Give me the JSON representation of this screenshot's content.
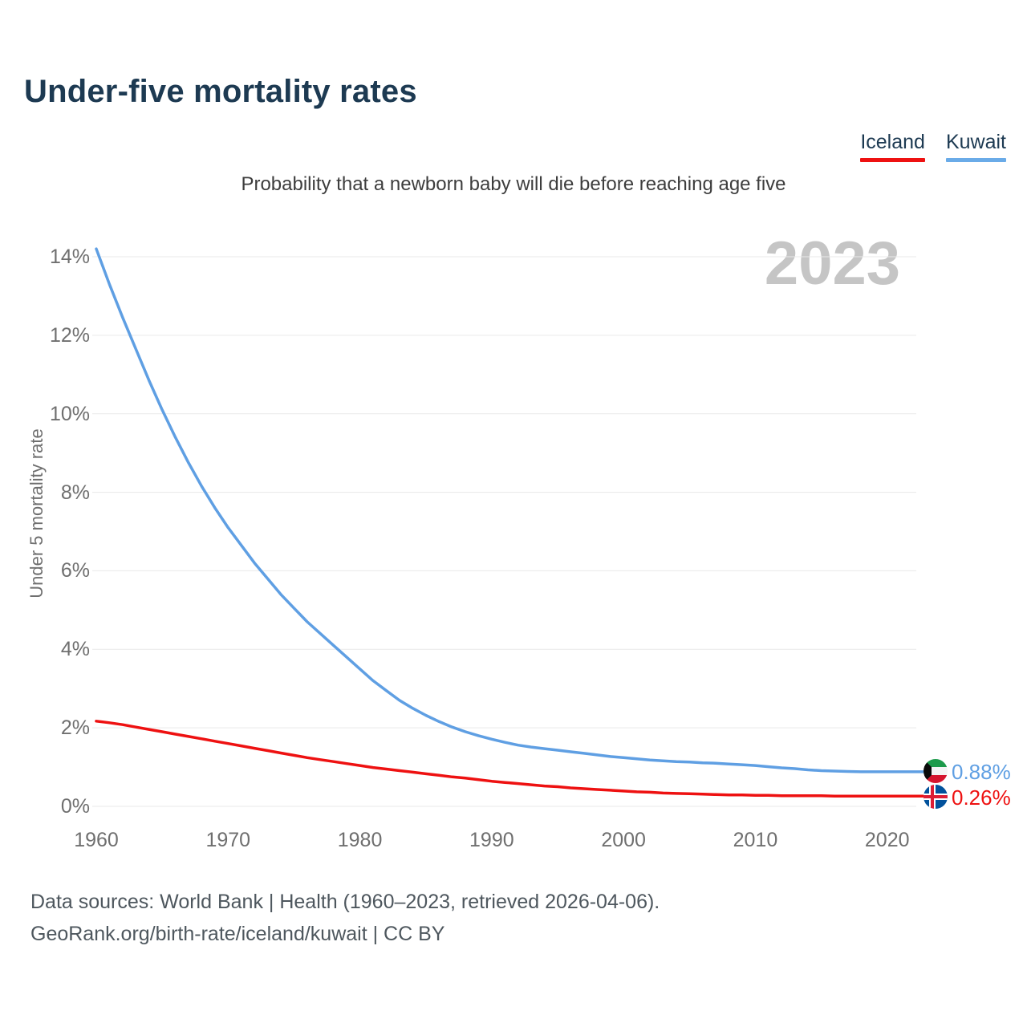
{
  "header": {
    "title": "Under-five mortality rates"
  },
  "legend": {
    "items": [
      {
        "label": "Iceland",
        "color": "#ee1111"
      },
      {
        "label": "Kuwait",
        "color": "#6aabe8"
      }
    ]
  },
  "subtitle": "Probability that a newborn baby will die before reaching age five",
  "watermark": "2023",
  "end_labels": [
    {
      "series": "Kuwait",
      "value_label": "0.88%",
      "color": "#5f9fe3",
      "flag": "kuwait-flag-icon"
    },
    {
      "series": "Iceland",
      "value_label": "0.26%",
      "color": "#ee1111",
      "flag": "iceland-flag-icon"
    }
  ],
  "footer": {
    "line1": "Data sources: World Bank | Health (1960–2023, retrieved 2026-04-06).",
    "line2": "GeoRank.org/birth-rate/iceland/kuwait | CC BY"
  },
  "chart_data": {
    "type": "line",
    "title": "Under-five mortality rates",
    "subtitle": "Probability that a newborn baby will die before reaching age five",
    "xlabel": "",
    "ylabel": "Under 5 mortality rate",
    "ylim": [
      0,
      14
    ],
    "xlim": [
      1960,
      2023
    ],
    "yticks_percent": [
      0,
      2,
      4,
      6,
      8,
      10,
      12,
      14
    ],
    "xticks": [
      1960,
      1970,
      1980,
      1990,
      2000,
      2010,
      2020
    ],
    "grid": true,
    "legend_position": "top-right",
    "grid_color": "#e9e9e9",
    "series": [
      {
        "name": "Kuwait",
        "color": "#5f9fe3",
        "end_label": "0.88%",
        "points": [
          [
            1960,
            14.2
          ],
          [
            1961,
            13.3
          ],
          [
            1962,
            12.45
          ],
          [
            1963,
            11.65
          ],
          [
            1964,
            10.85
          ],
          [
            1965,
            10.1
          ],
          [
            1966,
            9.4
          ],
          [
            1967,
            8.75
          ],
          [
            1968,
            8.15
          ],
          [
            1969,
            7.6
          ],
          [
            1970,
            7.1
          ],
          [
            1971,
            6.65
          ],
          [
            1972,
            6.2
          ],
          [
            1973,
            5.8
          ],
          [
            1974,
            5.4
          ],
          [
            1975,
            5.05
          ],
          [
            1976,
            4.7
          ],
          [
            1977,
            4.4
          ],
          [
            1978,
            4.1
          ],
          [
            1979,
            3.8
          ],
          [
            1980,
            3.5
          ],
          [
            1981,
            3.2
          ],
          [
            1982,
            2.95
          ],
          [
            1983,
            2.7
          ],
          [
            1984,
            2.5
          ],
          [
            1985,
            2.32
          ],
          [
            1986,
            2.16
          ],
          [
            1987,
            2.02
          ],
          [
            1988,
            1.9
          ],
          [
            1989,
            1.8
          ],
          [
            1990,
            1.71
          ],
          [
            1991,
            1.63
          ],
          [
            1992,
            1.56
          ],
          [
            1993,
            1.51
          ],
          [
            1994,
            1.47
          ],
          [
            1995,
            1.43
          ],
          [
            1996,
            1.39
          ],
          [
            1997,
            1.35
          ],
          [
            1998,
            1.31
          ],
          [
            1999,
            1.27
          ],
          [
            2000,
            1.24
          ],
          [
            2001,
            1.21
          ],
          [
            2002,
            1.18
          ],
          [
            2003,
            1.16
          ],
          [
            2004,
            1.14
          ],
          [
            2005,
            1.13
          ],
          [
            2006,
            1.11
          ],
          [
            2007,
            1.1
          ],
          [
            2008,
            1.08
          ],
          [
            2009,
            1.06
          ],
          [
            2010,
            1.04
          ],
          [
            2011,
            1.01
          ],
          [
            2012,
            0.98
          ],
          [
            2013,
            0.96
          ],
          [
            2014,
            0.93
          ],
          [
            2015,
            0.91
          ],
          [
            2016,
            0.9
          ],
          [
            2017,
            0.89
          ],
          [
            2018,
            0.88
          ],
          [
            2019,
            0.88
          ],
          [
            2020,
            0.88
          ],
          [
            2021,
            0.88
          ],
          [
            2022,
            0.88
          ],
          [
            2023,
            0.88
          ]
        ]
      },
      {
        "name": "Iceland",
        "color": "#ee1111",
        "end_label": "0.26%",
        "points": [
          [
            1960,
            2.17
          ],
          [
            1961,
            2.13
          ],
          [
            1962,
            2.08
          ],
          [
            1963,
            2.02
          ],
          [
            1964,
            1.96
          ],
          [
            1965,
            1.9
          ],
          [
            1966,
            1.84
          ],
          [
            1967,
            1.78
          ],
          [
            1968,
            1.72
          ],
          [
            1969,
            1.66
          ],
          [
            1970,
            1.6
          ],
          [
            1971,
            1.54
          ],
          [
            1972,
            1.48
          ],
          [
            1973,
            1.42
          ],
          [
            1974,
            1.36
          ],
          [
            1975,
            1.3
          ],
          [
            1976,
            1.24
          ],
          [
            1977,
            1.19
          ],
          [
            1978,
            1.14
          ],
          [
            1979,
            1.09
          ],
          [
            1980,
            1.04
          ],
          [
            1981,
            0.99
          ],
          [
            1982,
            0.95
          ],
          [
            1983,
            0.91
          ],
          [
            1984,
            0.87
          ],
          [
            1985,
            0.83
          ],
          [
            1986,
            0.79
          ],
          [
            1987,
            0.75
          ],
          [
            1988,
            0.72
          ],
          [
            1989,
            0.68
          ],
          [
            1990,
            0.64
          ],
          [
            1991,
            0.61
          ],
          [
            1992,
            0.58
          ],
          [
            1993,
            0.55
          ],
          [
            1994,
            0.52
          ],
          [
            1995,
            0.5
          ],
          [
            1996,
            0.47
          ],
          [
            1997,
            0.45
          ],
          [
            1998,
            0.43
          ],
          [
            1999,
            0.41
          ],
          [
            2000,
            0.39
          ],
          [
            2001,
            0.37
          ],
          [
            2002,
            0.36
          ],
          [
            2003,
            0.34
          ],
          [
            2004,
            0.33
          ],
          [
            2005,
            0.32
          ],
          [
            2006,
            0.31
          ],
          [
            2007,
            0.3
          ],
          [
            2008,
            0.29
          ],
          [
            2009,
            0.29
          ],
          [
            2010,
            0.28
          ],
          [
            2011,
            0.28
          ],
          [
            2012,
            0.27
          ],
          [
            2013,
            0.27
          ],
          [
            2014,
            0.27
          ],
          [
            2015,
            0.27
          ],
          [
            2016,
            0.26
          ],
          [
            2017,
            0.26
          ],
          [
            2018,
            0.26
          ],
          [
            2019,
            0.26
          ],
          [
            2020,
            0.26
          ],
          [
            2021,
            0.26
          ],
          [
            2022,
            0.26
          ],
          [
            2023,
            0.26
          ]
        ]
      }
    ]
  }
}
